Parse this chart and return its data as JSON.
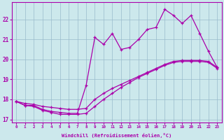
{
  "xlabel": "Windchill (Refroidissement éolien,°C)",
  "background_color": "#cce8ec",
  "line_color": "#aa00aa",
  "grid_color": "#99bbcc",
  "x": [
    0,
    1,
    2,
    3,
    4,
    5,
    6,
    7,
    8,
    9,
    10,
    11,
    12,
    13,
    14,
    15,
    16,
    17,
    18,
    19,
    20,
    21,
    22,
    23
  ],
  "y_top": [
    17.9,
    17.7,
    17.7,
    17.5,
    17.4,
    17.35,
    17.3,
    17.3,
    18.7,
    21.1,
    20.75,
    21.3,
    20.5,
    20.6,
    21.0,
    21.5,
    21.6,
    22.5,
    22.2,
    21.8,
    22.2,
    21.3,
    20.4,
    19.6
  ],
  "y_mid": [
    17.9,
    17.8,
    17.75,
    17.65,
    17.6,
    17.55,
    17.5,
    17.5,
    17.55,
    18.0,
    18.3,
    18.55,
    18.75,
    18.95,
    19.15,
    19.35,
    19.55,
    19.75,
    19.9,
    19.95,
    19.95,
    19.95,
    19.9,
    19.6
  ],
  "y_bot": [
    17.9,
    17.7,
    17.65,
    17.45,
    17.35,
    17.25,
    17.25,
    17.25,
    17.3,
    17.65,
    18.0,
    18.3,
    18.6,
    18.85,
    19.1,
    19.3,
    19.5,
    19.7,
    19.85,
    19.9,
    19.9,
    19.9,
    19.85,
    19.55
  ],
  "ylim": [
    16.85,
    22.85
  ],
  "xlim": [
    -0.5,
    23.5
  ],
  "yticks": [
    17,
    18,
    19,
    20,
    21,
    22
  ],
  "xticks": [
    0,
    1,
    2,
    3,
    4,
    5,
    6,
    7,
    8,
    9,
    10,
    11,
    12,
    13,
    14,
    15,
    16,
    17,
    18,
    19,
    20,
    21,
    22,
    23
  ]
}
